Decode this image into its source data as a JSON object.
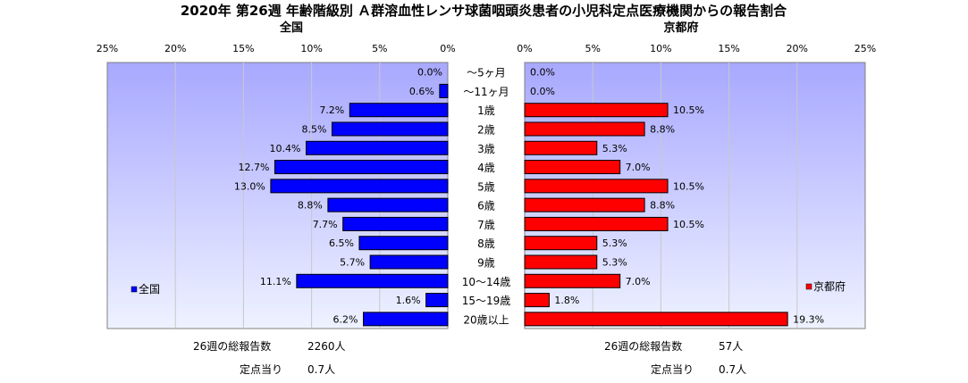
{
  "colors": {
    "plot_bg_top": "#a8a8ff",
    "plot_bg_bottom": "#eef2ff",
    "national_bar": "#0000ff",
    "kyoto_bar": "#ff0000",
    "grid": "#c8c8c8"
  },
  "chart_data": {
    "type": "bar",
    "title": "2020年 第26週 年齢階級別 Ａ群溶血性レンサ球菌咽頭炎患者の小児科定点医療機関からの報告割合",
    "orientation": "horizontal",
    "categories": [
      "～5ヶ月",
      "～11ヶ月",
      "1歳",
      "2歳",
      "3歳",
      "4歳",
      "5歳",
      "6歳",
      "7歳",
      "8歳",
      "9歳",
      "10～14歳",
      "15～19歳",
      "20歳以上"
    ],
    "xlim": [
      0,
      25
    ],
    "ticks": [
      "0%",
      "5%",
      "10%",
      "15%",
      "20%",
      "25%"
    ],
    "grid": true,
    "panels": [
      {
        "subtitle": "全国",
        "legend": "全国",
        "legend_position": "lower-left",
        "direction": "left",
        "values": [
          0.0,
          0.6,
          7.2,
          8.5,
          10.4,
          12.7,
          13.0,
          8.8,
          7.7,
          6.5,
          5.7,
          11.1,
          1.6,
          6.2
        ],
        "labels": [
          "0.0%",
          "0.6%",
          "7.2%",
          "8.5%",
          "10.4%",
          "12.7%",
          "13.0%",
          "8.8%",
          "7.7%",
          "6.5%",
          "5.7%",
          "11.1%",
          "1.6%",
          "6.2%"
        ],
        "total_label": "26週の総報告数",
        "total_value": "2260人",
        "per_label": "定点当り",
        "per_value": "0.7人"
      },
      {
        "subtitle": "京都府",
        "legend": "京都府",
        "legend_position": "lower-right",
        "direction": "right",
        "values": [
          0.0,
          0.0,
          10.5,
          8.8,
          5.3,
          7.0,
          10.5,
          8.8,
          10.5,
          5.3,
          5.3,
          7.0,
          1.8,
          19.3
        ],
        "labels": [
          "0.0%",
          "0.0%",
          "10.5%",
          "8.8%",
          "5.3%",
          "7.0%",
          "10.5%",
          "8.8%",
          "10.5%",
          "5.3%",
          "5.3%",
          "7.0%",
          "1.8%",
          "19.3%"
        ],
        "total_label": "26週の総報告数",
        "total_value": "57人",
        "per_label": "定点当り",
        "per_value": "0.7人"
      }
    ]
  }
}
